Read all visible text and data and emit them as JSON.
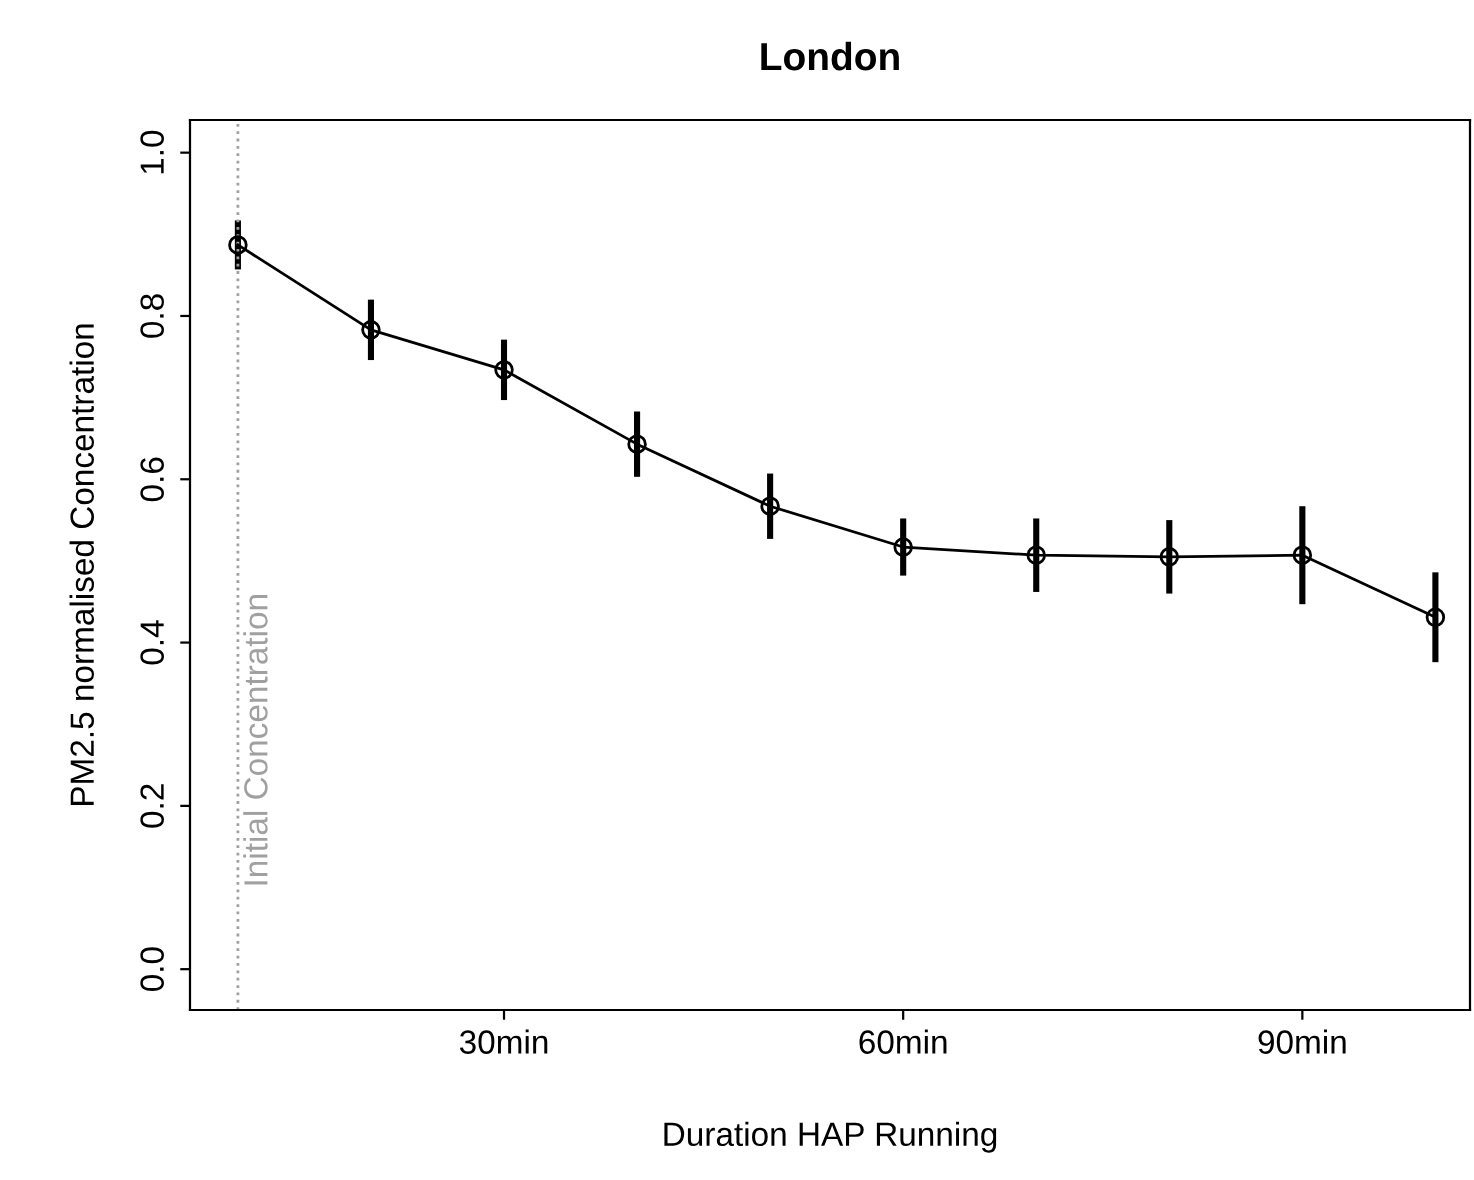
{
  "chart_data": {
    "type": "line",
    "title": "London",
    "xlabel": "Duration HAP Running",
    "ylabel": "PM2.5 normalised Concentration",
    "x": [
      10,
      20,
      30,
      40,
      50,
      60,
      70,
      80,
      90,
      100
    ],
    "values": [
      0.887,
      0.783,
      0.734,
      0.643,
      0.567,
      0.517,
      0.507,
      0.505,
      0.507,
      0.431
    ],
    "errors": [
      0.03,
      0.037,
      0.037,
      0.04,
      0.04,
      0.035,
      0.045,
      0.045,
      0.06,
      0.055
    ],
    "color": "#000000",
    "marker": "circle",
    "line_style": "solid",
    "xlim": [
      6.4,
      102.6
    ],
    "xticks": [
      {
        "value": 30,
        "label": "30min"
      },
      {
        "value": 60,
        "label": "60min"
      },
      {
        "value": 90,
        "label": "90min"
      }
    ],
    "ylim": [
      -0.05,
      1.04
    ],
    "yticks": [
      {
        "value": 0,
        "label": "0.0"
      },
      {
        "value": 0.2,
        "label": "0.2"
      },
      {
        "value": 0.4,
        "label": "0.4"
      },
      {
        "value": 0.6,
        "label": "0.6"
      },
      {
        "value": 0.8,
        "label": "0.8"
      },
      {
        "value": 1,
        "label": "1.0"
      }
    ],
    "ref_lines": [
      {
        "axis": "x",
        "value": 10,
        "label": "Initial Concentration",
        "color": "#a0a0a0",
        "line_style": "dotted"
      }
    ],
    "grid": false
  }
}
